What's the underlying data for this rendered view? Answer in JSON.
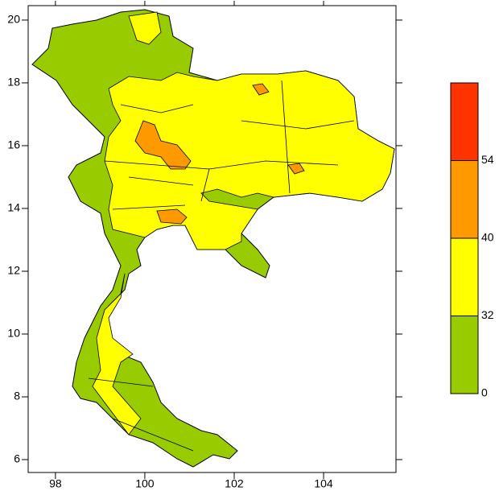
{
  "axes": {
    "xlim": [
      97.39,
      105.62
    ],
    "ylim": [
      5.59,
      20.46
    ],
    "xticks": [
      98,
      100,
      102,
      104
    ],
    "yticks": [
      6,
      8,
      10,
      12,
      14,
      16,
      18,
      20
    ]
  },
  "colorbar": {
    "levels": [
      0,
      32,
      40,
      54
    ],
    "colors": [
      "#99cc00",
      "#ffff00",
      "#ff9900",
      "#ff3300"
    ]
  }
}
